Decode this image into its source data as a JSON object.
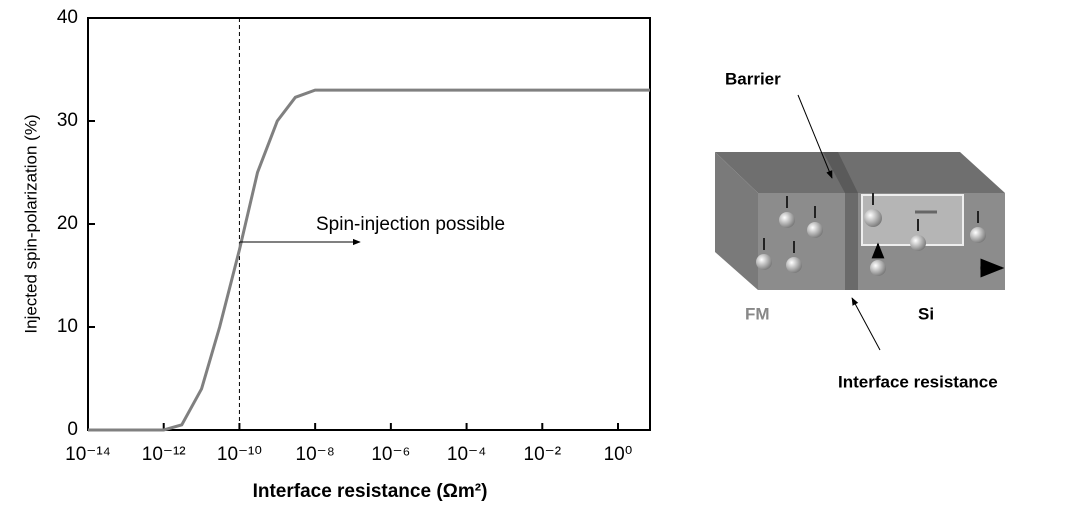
{
  "chart_data": {
    "type": "line",
    "x_label": "Interface resistance (Ωm²)",
    "y_label": "Injected spin-polarization (%)",
    "annotation": "Spin-injection possible",
    "reference_line_x": 1e-10,
    "x_scale": "log",
    "xlim": [
      1e-14,
      7
    ],
    "ylim": [
      0,
      40
    ],
    "xticks": [
      {
        "value": 1e-14,
        "label": "10⁻¹⁴"
      },
      {
        "value": 1e-12,
        "label": "10⁻¹²"
      },
      {
        "value": 1e-10,
        "label": "10⁻¹⁰"
      },
      {
        "value": 1e-08,
        "label": "10⁻⁸"
      },
      {
        "value": 1e-06,
        "label": "10⁻⁶"
      },
      {
        "value": 0.0001,
        "label": "10⁻⁴"
      },
      {
        "value": 0.01,
        "label": "10⁻²"
      },
      {
        "value": 1,
        "label": "10⁰"
      }
    ],
    "yticks": [
      0,
      10,
      20,
      30,
      40
    ],
    "series": [
      {
        "color": "#808080",
        "x": [
          1e-14,
          1e-12,
          3e-12,
          1e-11,
          3e-11,
          1e-10,
          3e-10,
          1e-09,
          3e-09,
          1e-08,
          7
        ],
        "values": [
          0,
          0,
          0.5,
          4,
          10,
          17.5,
          25,
          30,
          32.3,
          33,
          33
        ]
      }
    ]
  },
  "diagram": {
    "barrier": "Barrier",
    "fm": "FM",
    "si": "Si",
    "interface": "Interface resistance"
  }
}
